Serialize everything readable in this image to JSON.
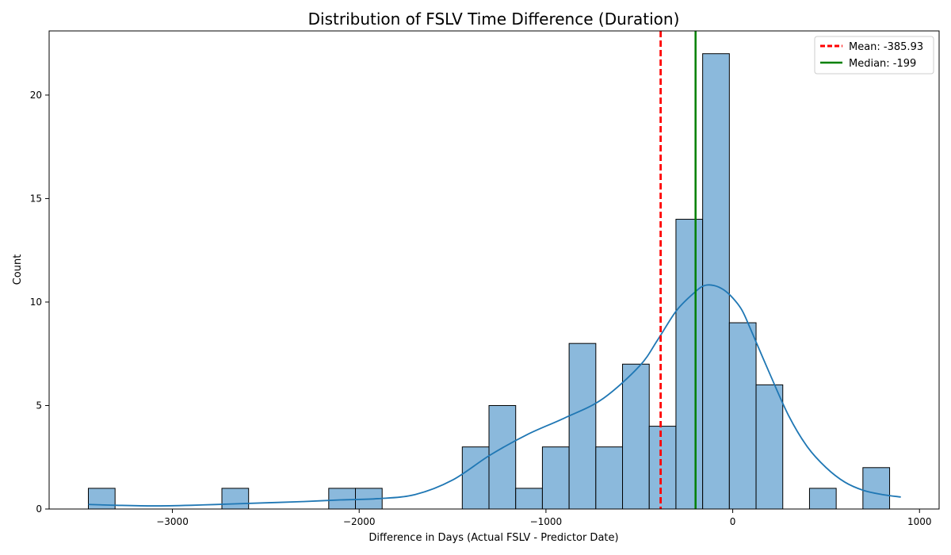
{
  "chart_data": {
    "type": "bar",
    "title": "Distribution of FSLV Time Difference (Duration)",
    "xlabel": "Difference in Days (Actual FSLV - Predictor Date)",
    "ylabel": "Count",
    "xlim": [
      -3660,
      1105
    ],
    "ylim": [
      0,
      23.1
    ],
    "x_ticks": [
      -3000,
      -2000,
      -1000,
      0,
      1000
    ],
    "x_tick_labels": [
      "−3000",
      "−2000",
      "−1000",
      "0",
      "1000"
    ],
    "y_ticks": [
      0,
      5,
      10,
      15,
      20
    ],
    "y_tick_labels": [
      "0",
      "5",
      "10",
      "15",
      "20"
    ],
    "grid": false,
    "legend_position": "top-right",
    "bins": [
      {
        "x0": -3450,
        "x1": -3307,
        "count": 1
      },
      {
        "x0": -3307,
        "x1": -3164,
        "count": 0
      },
      {
        "x0": -3164,
        "x1": -3021,
        "count": 0
      },
      {
        "x0": -3021,
        "x1": -2878,
        "count": 0
      },
      {
        "x0": -2878,
        "x1": -2735,
        "count": 0
      },
      {
        "x0": -2735,
        "x1": -2592,
        "count": 1
      },
      {
        "x0": -2592,
        "x1": -2449,
        "count": 0
      },
      {
        "x0": -2449,
        "x1": -2306,
        "count": 0
      },
      {
        "x0": -2306,
        "x1": -2163,
        "count": 0
      },
      {
        "x0": -2163,
        "x1": -2020,
        "count": 1
      },
      {
        "x0": -2020,
        "x1": -1877,
        "count": 1
      },
      {
        "x0": -1877,
        "x1": -1734,
        "count": 0
      },
      {
        "x0": -1734,
        "x1": -1591,
        "count": 0
      },
      {
        "x0": -1591,
        "x1": -1448,
        "count": 0
      },
      {
        "x0": -1448,
        "x1": -1305,
        "count": 3
      },
      {
        "x0": -1305,
        "x1": -1162,
        "count": 5
      },
      {
        "x0": -1162,
        "x1": -1019,
        "count": 1
      },
      {
        "x0": -1019,
        "x1": -876,
        "count": 3
      },
      {
        "x0": -876,
        "x1": -733,
        "count": 8
      },
      {
        "x0": -733,
        "x1": -590,
        "count": 3
      },
      {
        "x0": -590,
        "x1": -447,
        "count": 7
      },
      {
        "x0": -447,
        "x1": -304,
        "count": 4
      },
      {
        "x0": -304,
        "x1": -161,
        "count": 14
      },
      {
        "x0": -161,
        "x1": -18,
        "count": 22
      },
      {
        "x0": -18,
        "x1": 125,
        "count": 9
      },
      {
        "x0": 125,
        "x1": 268,
        "count": 6
      },
      {
        "x0": 268,
        "x1": 411,
        "count": 0
      },
      {
        "x0": 411,
        "x1": 554,
        "count": 1
      },
      {
        "x0": 554,
        "x1": 697,
        "count": 0
      },
      {
        "x0": 697,
        "x1": 840,
        "count": 2
      }
    ],
    "kde": {
      "x": [
        -3450,
        -3300,
        -3100,
        -2900,
        -2700,
        -2500,
        -2300,
        -2100,
        -1900,
        -1700,
        -1500,
        -1300,
        -1100,
        -900,
        -700,
        -500,
        -400,
        -300,
        -200,
        -150,
        -100,
        -50,
        0,
        50,
        100,
        200,
        300,
        400,
        500,
        600,
        700,
        800,
        900
      ],
      "y": [
        0.22,
        0.18,
        0.15,
        0.18,
        0.24,
        0.3,
        0.36,
        0.44,
        0.5,
        0.7,
        1.4,
        2.6,
        3.6,
        4.4,
        5.3,
        6.9,
        8.2,
        9.6,
        10.5,
        10.8,
        10.8,
        10.6,
        10.2,
        9.6,
        8.6,
        6.5,
        4.5,
        3.0,
        2.0,
        1.3,
        0.9,
        0.7,
        0.58
      ]
    },
    "reference_lines": [
      {
        "name": "Mean",
        "value": -385.93,
        "color": "#ff0000",
        "style": "dashed"
      },
      {
        "name": "Median",
        "value": -199,
        "color": "#008000",
        "style": "solid"
      }
    ],
    "legend_entries": [
      "Mean: -385.93",
      "Median: -199"
    ],
    "colors": {
      "bar_fill": "#8bb9dc",
      "bar_edge": "#000000",
      "kde_line": "#1f77b4"
    }
  }
}
